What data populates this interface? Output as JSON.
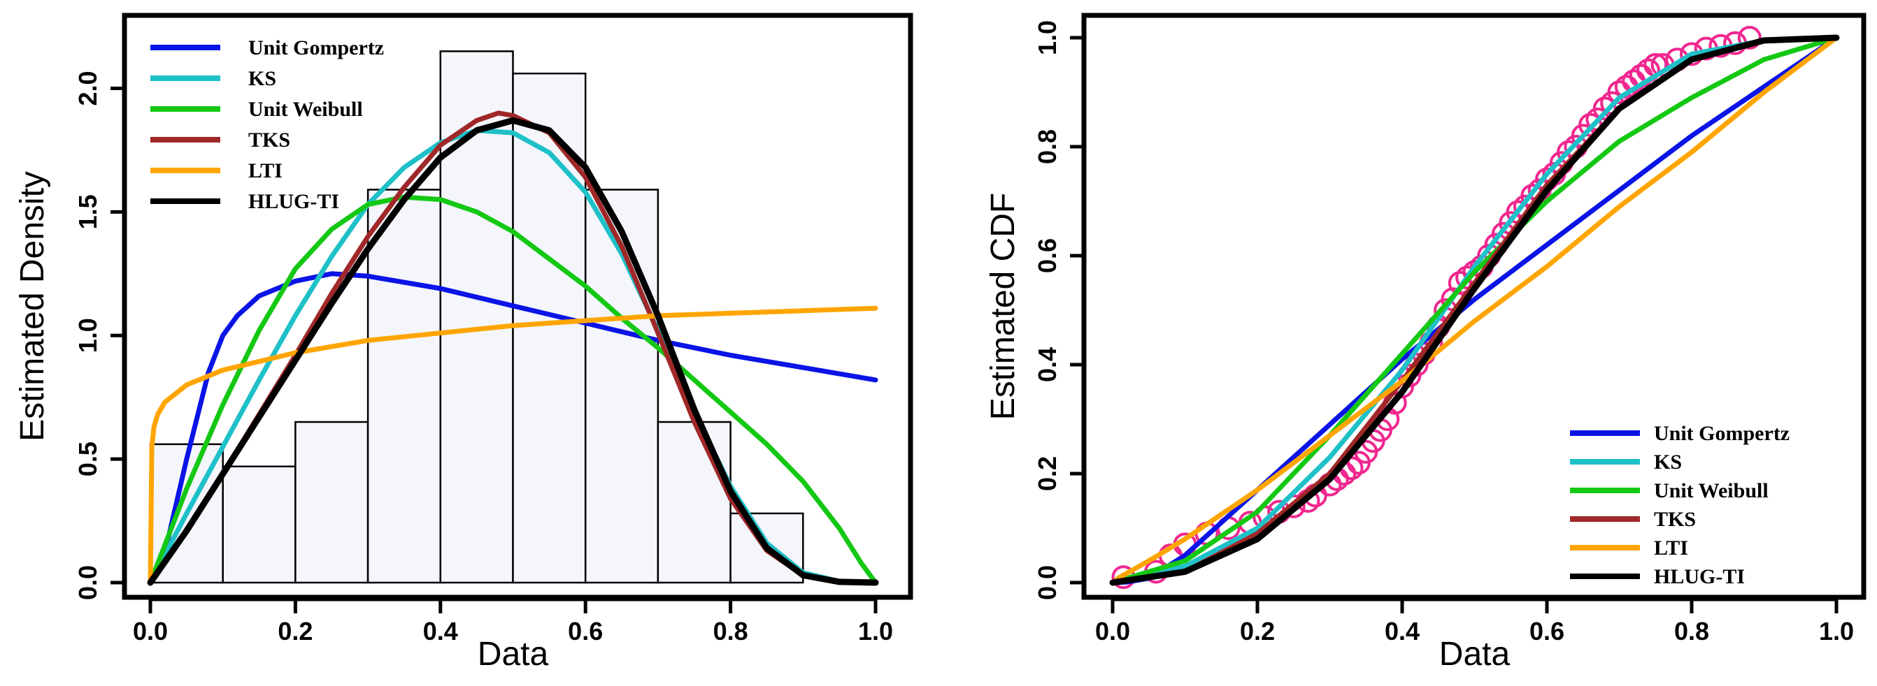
{
  "chart_data": [
    {
      "type": "density",
      "title": "",
      "xlabel": "Data",
      "ylabel": "Estimated Density",
      "xlim": [
        0,
        1
      ],
      "ylim": [
        0,
        2.25
      ],
      "xticks": [
        "0.0",
        "0.2",
        "0.4",
        "0.6",
        "0.8",
        "1.0"
      ],
      "yticks": [
        "0.0",
        "0.5",
        "1.0",
        "1.5",
        "2.0"
      ],
      "legend_position": "top-left",
      "histogram": {
        "bin_edges": [
          0.0,
          0.1,
          0.2,
          0.3,
          0.4,
          0.5,
          0.6,
          0.7,
          0.8,
          0.9
        ],
        "heights": [
          0.56,
          0.47,
          0.65,
          1.59,
          2.15,
          2.06,
          1.59,
          0.65,
          0.28
        ]
      },
      "series": [
        {
          "name": "Unit Gompertz",
          "color": "#0a14e6",
          "x": [
            0.0,
            0.02,
            0.05,
            0.08,
            0.1,
            0.12,
            0.15,
            0.2,
            0.25,
            0.3,
            0.4,
            0.5,
            0.6,
            0.7,
            0.8,
            0.9,
            1.0
          ],
          "y": [
            0.0,
            0.12,
            0.5,
            0.85,
            1.0,
            1.08,
            1.16,
            1.22,
            1.25,
            1.24,
            1.19,
            1.12,
            1.05,
            0.98,
            0.92,
            0.87,
            0.82
          ]
        },
        {
          "name": "KS",
          "color": "#1fc0c8",
          "x": [
            0.0,
            0.05,
            0.1,
            0.15,
            0.2,
            0.25,
            0.3,
            0.35,
            0.4,
            0.45,
            0.5,
            0.55,
            0.6,
            0.65,
            0.7,
            0.75,
            0.8,
            0.85,
            0.9,
            0.95,
            1.0
          ],
          "y": [
            0.0,
            0.28,
            0.55,
            0.82,
            1.08,
            1.32,
            1.53,
            1.68,
            1.78,
            1.83,
            1.82,
            1.74,
            1.58,
            1.33,
            1.02,
            0.69,
            0.39,
            0.16,
            0.04,
            0.005,
            0.0
          ]
        },
        {
          "name": "Unit Weibull",
          "color": "#14c814",
          "x": [
            0.0,
            0.05,
            0.1,
            0.15,
            0.2,
            0.25,
            0.3,
            0.35,
            0.4,
            0.45,
            0.5,
            0.55,
            0.6,
            0.65,
            0.7,
            0.75,
            0.8,
            0.85,
            0.9,
            0.95,
            0.98,
            1.0
          ],
          "y": [
            0.0,
            0.38,
            0.72,
            1.02,
            1.27,
            1.43,
            1.53,
            1.56,
            1.55,
            1.5,
            1.42,
            1.31,
            1.2,
            1.07,
            0.95,
            0.82,
            0.69,
            0.56,
            0.41,
            0.22,
            0.08,
            0.0
          ]
        },
        {
          "name": "TKS",
          "color": "#a02828",
          "x": [
            0.0,
            0.05,
            0.1,
            0.15,
            0.2,
            0.25,
            0.3,
            0.35,
            0.4,
            0.45,
            0.48,
            0.5,
            0.55,
            0.6,
            0.65,
            0.7,
            0.75,
            0.8,
            0.85,
            0.9,
            0.95,
            1.0
          ],
          "y": [
            0.0,
            0.21,
            0.44,
            0.68,
            0.92,
            1.17,
            1.4,
            1.6,
            1.77,
            1.87,
            1.9,
            1.89,
            1.82,
            1.64,
            1.36,
            1.01,
            0.65,
            0.34,
            0.13,
            0.03,
            0.003,
            0.0
          ]
        },
        {
          "name": "LTI",
          "color": "#ffa500",
          "x": [
            0.0,
            0.002,
            0.005,
            0.01,
            0.02,
            0.05,
            0.1,
            0.2,
            0.3,
            0.4,
            0.5,
            0.6,
            0.7,
            0.8,
            0.9,
            1.0
          ],
          "y": [
            0.0,
            0.55,
            0.63,
            0.68,
            0.73,
            0.8,
            0.86,
            0.93,
            0.98,
            1.01,
            1.04,
            1.06,
            1.08,
            1.09,
            1.1,
            1.11
          ]
        },
        {
          "name": "HLUG-TI",
          "color": "#000000",
          "x": [
            0.0,
            0.05,
            0.1,
            0.15,
            0.2,
            0.25,
            0.3,
            0.35,
            0.4,
            0.45,
            0.5,
            0.55,
            0.6,
            0.65,
            0.7,
            0.75,
            0.8,
            0.85,
            0.9,
            0.95,
            1.0
          ],
          "y": [
            0.0,
            0.21,
            0.44,
            0.67,
            0.9,
            1.13,
            1.35,
            1.55,
            1.72,
            1.83,
            1.87,
            1.83,
            1.68,
            1.42,
            1.08,
            0.7,
            0.37,
            0.14,
            0.03,
            0.003,
            0.0
          ]
        }
      ]
    },
    {
      "type": "line",
      "title": "",
      "xlabel": "Data",
      "ylabel": "Estimated CDF",
      "xlim": [
        0,
        1
      ],
      "ylim": [
        0,
        1
      ],
      "xticks": [
        "0.0",
        "0.2",
        "0.4",
        "0.6",
        "0.8",
        "1.0"
      ],
      "yticks": [
        "0.0",
        "0.2",
        "0.4",
        "0.6",
        "0.8",
        "1.0"
      ],
      "legend_position": "bottom-right",
      "empirical": {
        "color": "#f0278f",
        "x": [
          0.015,
          0.06,
          0.08,
          0.1,
          0.13,
          0.16,
          0.19,
          0.21,
          0.23,
          0.25,
          0.27,
          0.28,
          0.3,
          0.31,
          0.32,
          0.33,
          0.34,
          0.35,
          0.36,
          0.37,
          0.38,
          0.39,
          0.4,
          0.41,
          0.42,
          0.43,
          0.44,
          0.45,
          0.46,
          0.47,
          0.48,
          0.49,
          0.5,
          0.51,
          0.52,
          0.53,
          0.54,
          0.55,
          0.56,
          0.57,
          0.58,
          0.59,
          0.6,
          0.61,
          0.62,
          0.63,
          0.64,
          0.65,
          0.66,
          0.67,
          0.68,
          0.69,
          0.7,
          0.71,
          0.72,
          0.73,
          0.74,
          0.75,
          0.76,
          0.78,
          0.8,
          0.82,
          0.84,
          0.86,
          0.88
        ],
        "y": [
          0.01,
          0.02,
          0.05,
          0.07,
          0.09,
          0.1,
          0.11,
          0.12,
          0.13,
          0.14,
          0.15,
          0.16,
          0.18,
          0.19,
          0.2,
          0.21,
          0.22,
          0.24,
          0.26,
          0.28,
          0.3,
          0.33,
          0.36,
          0.38,
          0.4,
          0.42,
          0.44,
          0.47,
          0.5,
          0.52,
          0.55,
          0.56,
          0.57,
          0.58,
          0.6,
          0.62,
          0.64,
          0.66,
          0.68,
          0.69,
          0.71,
          0.72,
          0.74,
          0.75,
          0.77,
          0.79,
          0.8,
          0.82,
          0.84,
          0.85,
          0.87,
          0.88,
          0.9,
          0.91,
          0.92,
          0.93,
          0.94,
          0.95,
          0.95,
          0.96,
          0.97,
          0.98,
          0.985,
          0.99,
          1.0
        ]
      },
      "series": [
        {
          "name": "Unit Gompertz",
          "color": "#0a14e6",
          "x": [
            0.0,
            0.02,
            0.05,
            0.1,
            0.2,
            0.3,
            0.4,
            0.5,
            0.6,
            0.7,
            0.8,
            0.9,
            1.0
          ],
          "y": [
            0.0,
            0.001,
            0.008,
            0.05,
            0.17,
            0.29,
            0.41,
            0.52,
            0.62,
            0.72,
            0.82,
            0.91,
            1.0
          ]
        },
        {
          "name": "KS",
          "color": "#1fc0c8",
          "x": [
            0.0,
            0.1,
            0.2,
            0.3,
            0.4,
            0.5,
            0.6,
            0.7,
            0.8,
            0.9,
            1.0
          ],
          "y": [
            0.0,
            0.03,
            0.1,
            0.23,
            0.39,
            0.58,
            0.75,
            0.89,
            0.97,
            0.995,
            1.0
          ]
        },
        {
          "name": "Unit Weibull",
          "color": "#14c814",
          "x": [
            0.0,
            0.1,
            0.2,
            0.3,
            0.4,
            0.5,
            0.6,
            0.7,
            0.8,
            0.9,
            1.0
          ],
          "y": [
            0.0,
            0.04,
            0.13,
            0.27,
            0.42,
            0.57,
            0.7,
            0.81,
            0.89,
            0.96,
            1.0
          ]
        },
        {
          "name": "TKS",
          "color": "#a02828",
          "x": [
            0.0,
            0.1,
            0.2,
            0.3,
            0.4,
            0.5,
            0.6,
            0.7,
            0.8,
            0.9,
            1.0
          ],
          "y": [
            0.0,
            0.02,
            0.09,
            0.2,
            0.37,
            0.55,
            0.73,
            0.87,
            0.96,
            0.995,
            1.0
          ]
        },
        {
          "name": "LTI",
          "color": "#ffa500",
          "x": [
            0.0,
            0.01,
            0.05,
            0.1,
            0.2,
            0.3,
            0.4,
            0.5,
            0.6,
            0.7,
            0.8,
            0.9,
            1.0
          ],
          "y": [
            0.0,
            0.01,
            0.04,
            0.08,
            0.17,
            0.27,
            0.37,
            0.48,
            0.58,
            0.69,
            0.79,
            0.9,
            1.0
          ]
        },
        {
          "name": "HLUG-TI",
          "color": "#000000",
          "x": [
            0.0,
            0.1,
            0.2,
            0.3,
            0.4,
            0.5,
            0.6,
            0.7,
            0.8,
            0.9,
            1.0
          ],
          "y": [
            0.0,
            0.02,
            0.08,
            0.19,
            0.35,
            0.54,
            0.72,
            0.87,
            0.96,
            0.995,
            1.0
          ]
        }
      ]
    }
  ]
}
